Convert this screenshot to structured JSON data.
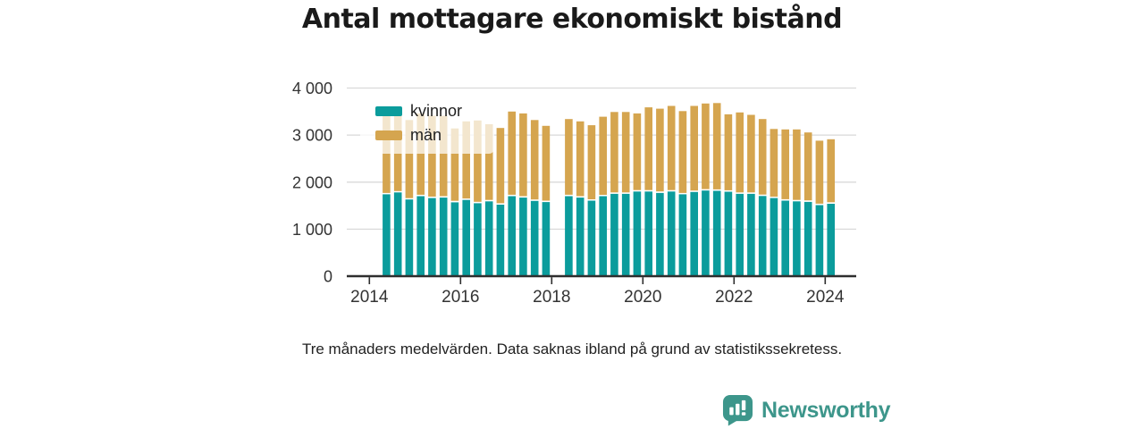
{
  "title": "Antal mottagare ekonomiskt bistånd",
  "note": "Tre månaders medelvärden. Data saknas ibland på grund av statistikssekretess.",
  "brand": {
    "name": "Newsworthy",
    "color": "#3d968b",
    "icon": "bar-chart-speech-bubble-icon"
  },
  "colors": {
    "kvinnor": "#0b9c9c",
    "man": "#d5a54f",
    "axis": "#2e2e2e",
    "axis_text": "#333333",
    "grid": "#d9d9d9",
    "title": "#1a1a1a",
    "note_text": "#222222",
    "legend_text": "#1e1e1e",
    "background": "#ffffff"
  },
  "legend": [
    {
      "label": "kvinnor",
      "color": "#0b9c9c"
    },
    {
      "label": "män",
      "color": "#d5a54f"
    }
  ],
  "chart_data": {
    "type": "bar",
    "stacked": true,
    "title": "Antal mottagare ekonomiskt bistånd",
    "xlabel": "",
    "ylabel": "",
    "ylim": [
      0,
      4000
    ],
    "grid": true,
    "legend_position": "inside-top-left",
    "x_unit": "quarter (3-month averages)",
    "missing": [
      "2018K1"
    ],
    "y_ticks": [
      {
        "value": 0,
        "label": "0"
      },
      {
        "value": 1000,
        "label": "1 000"
      },
      {
        "value": 2000,
        "label": "2 000"
      },
      {
        "value": 3000,
        "label": "3 000"
      },
      {
        "value": 4000,
        "label": "4 000"
      }
    ],
    "x_ticks": [
      {
        "value": 2014,
        "label": "2014"
      },
      {
        "value": 2016,
        "label": "2016"
      },
      {
        "value": 2018,
        "label": "2018"
      },
      {
        "value": 2020,
        "label": "2020"
      },
      {
        "value": 2022,
        "label": "2022"
      },
      {
        "value": 2024,
        "label": "2024"
      }
    ],
    "categories": [
      "2014K2",
      "2014K3",
      "2014K4",
      "2015K1",
      "2015K2",
      "2015K3",
      "2015K4",
      "2016K1",
      "2016K2",
      "2016K3",
      "2016K4",
      "2017K1",
      "2017K2",
      "2017K3",
      "2017K4",
      "2018K1",
      "2018K2",
      "2018K3",
      "2018K4",
      "2019K1",
      "2019K2",
      "2019K3",
      "2019K4",
      "2020K1",
      "2020K2",
      "2020K3",
      "2020K4",
      "2021K1",
      "2021K2",
      "2021K3",
      "2021K4",
      "2022K1",
      "2022K2",
      "2022K3",
      "2022K4",
      "2023K1",
      "2023K2",
      "2023K3",
      "2023K4",
      "2024K1"
    ],
    "series": [
      {
        "name": "kvinnor",
        "color": "#0b9c9c",
        "values": [
          1740,
          1780,
          1630,
          1700,
          1660,
          1670,
          1570,
          1620,
          1550,
          1590,
          1520,
          1700,
          1670,
          1600,
          1575,
          null,
          1700,
          1670,
          1605,
          1700,
          1750,
          1750,
          1800,
          1800,
          1770,
          1800,
          1740,
          1790,
          1820,
          1815,
          1795,
          1750,
          1750,
          1705,
          1660,
          1605,
          1590,
          1580,
          1510,
          1540
        ]
      },
      {
        "name": "män",
        "color": "#d5a54f",
        "values": [
          1740,
          1740,
          1660,
          1730,
          1720,
          1710,
          1540,
          1640,
          1730,
          1610,
          1600,
          1770,
          1760,
          1690,
          1590,
          null,
          1610,
          1590,
          1575,
          1660,
          1710,
          1710,
          1630,
          1760,
          1760,
          1790,
          1740,
          1800,
          1820,
          1835,
          1615,
          1700,
          1650,
          1605,
          1440,
          1485,
          1500,
          1445,
          1340,
          1340
        ]
      }
    ]
  }
}
